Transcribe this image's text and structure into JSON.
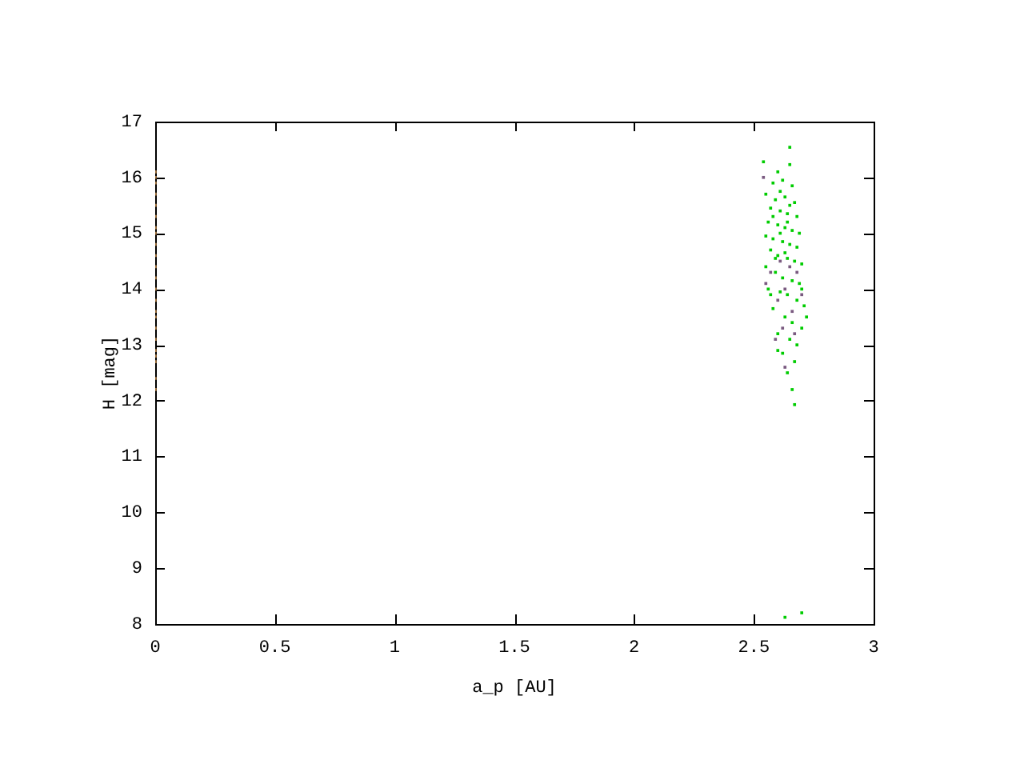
{
  "chart_data": {
    "type": "scatter",
    "xlabel": "a_p [AU]",
    "ylabel": "H [mag]",
    "xlim": [
      0,
      3
    ],
    "xticks": [
      0,
      0.5,
      1,
      1.5,
      2,
      2.5,
      3
    ],
    "ylim": [
      8,
      17
    ],
    "yticks": [
      8,
      9,
      10,
      11,
      12,
      13,
      14,
      15,
      16,
      17
    ],
    "grid": false,
    "legend": false,
    "marker": "square",
    "series": [
      {
        "color": "#00cc00",
        "x": [
          2.65,
          2.65,
          2.54,
          2.6,
          2.58,
          2.62,
          2.66,
          2.55,
          2.59,
          2.63,
          2.67,
          2.57,
          2.61,
          2.64,
          2.68,
          2.56,
          2.6,
          2.63,
          2.66,
          2.69,
          2.55,
          2.58,
          2.62,
          2.65,
          2.68,
          2.57,
          2.6,
          2.64,
          2.67,
          2.7,
          2.55,
          2.59,
          2.62,
          2.66,
          2.69,
          2.56,
          2.61,
          2.64,
          2.68,
          2.71,
          2.58,
          2.63,
          2.66,
          2.7,
          2.6,
          2.65,
          2.68,
          2.62,
          2.67,
          2.64,
          2.66,
          2.67,
          2.63,
          2.7,
          2.61,
          2.64,
          2.59,
          2.63,
          2.61,
          2.65,
          2.58,
          2.7,
          2.57,
          2.72,
          2.6
        ],
        "values": [
          16.54,
          16.23,
          16.28,
          16.1,
          15.9,
          15.95,
          15.85,
          15.7,
          15.6,
          15.65,
          15.55,
          15.45,
          15.4,
          15.35,
          15.3,
          15.2,
          15.15,
          15.1,
          15.05,
          15.0,
          14.95,
          14.9,
          14.85,
          14.8,
          14.75,
          14.7,
          14.6,
          14.55,
          14.5,
          14.45,
          14.4,
          14.3,
          14.2,
          14.15,
          14.1,
          14.0,
          13.95,
          13.9,
          13.8,
          13.7,
          13.65,
          13.5,
          13.4,
          13.3,
          13.2,
          13.1,
          13.0,
          12.85,
          12.7,
          12.5,
          12.2,
          11.93,
          8.12,
          8.2,
          15.75,
          15.2,
          14.55,
          14.65,
          15.0,
          15.5,
          15.3,
          14.0,
          13.9,
          13.5,
          12.9
        ]
      },
      {
        "color": "#7a5a80",
        "x": [
          2.57,
          2.6,
          2.63,
          2.66,
          2.55,
          2.62,
          2.68,
          2.59,
          2.65,
          2.7,
          2.54,
          2.61,
          2.67,
          2.63
        ],
        "values": [
          14.3,
          13.8,
          14.0,
          13.6,
          14.1,
          13.3,
          14.3,
          13.1,
          14.4,
          13.9,
          16.0,
          14.5,
          13.2,
          12.6
        ]
      },
      {
        "color": "#a0703a",
        "x": [
          0,
          0,
          0,
          0,
          0,
          0,
          0,
          0,
          0,
          0,
          0,
          0,
          0,
          0,
          0,
          0,
          0,
          0,
          0,
          0,
          0,
          0,
          0
        ],
        "values": [
          12.2,
          12.4,
          12.7,
          12.8,
          12.9,
          13.1,
          13.3,
          13.5,
          13.6,
          13.8,
          14.0,
          14.2,
          14.4,
          14.6,
          14.8,
          15.0,
          15.1,
          15.3,
          15.5,
          15.7,
          15.9,
          16.0,
          16.1
        ]
      }
    ]
  }
}
